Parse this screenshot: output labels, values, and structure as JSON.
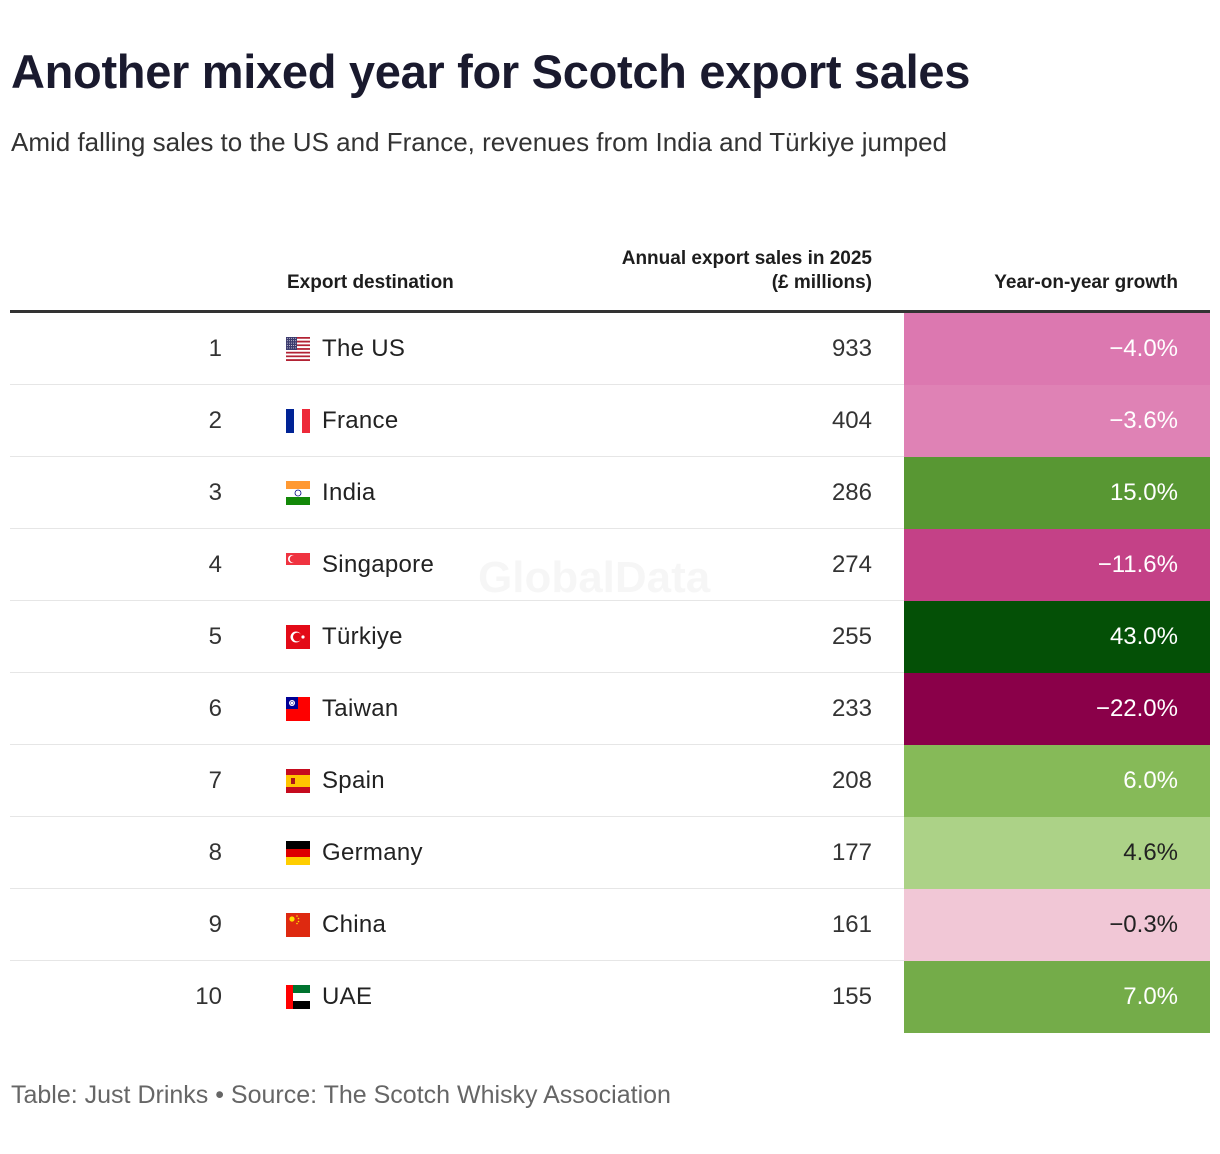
{
  "title": "Another mixed year for Scotch export sales",
  "subtitle": "Amid falling sales to the US and France, revenues from India and Türkiye jumped",
  "watermark": "GlobalData",
  "footer": "Table: Just Drinks • Source: The Scotch Whisky Association",
  "chart_data": {
    "type": "table",
    "columns": [
      "Export destination",
      "Annual export sales in 2025 (£ millions)",
      "Year-on-year growth"
    ],
    "rows": [
      {
        "rank": "1",
        "country": "The US",
        "flag": "us-flag-icon",
        "sales": "933",
        "growth": "−4.0%",
        "growth_value": -4.0,
        "color": "#dc78b0",
        "text_color": "#ffffff"
      },
      {
        "rank": "2",
        "country": "France",
        "flag": "france-flag-icon",
        "sales": "404",
        "growth": "−3.6%",
        "growth_value": -3.6,
        "color": "#df82b5",
        "text_color": "#ffffff"
      },
      {
        "rank": "3",
        "country": "India",
        "flag": "india-flag-icon",
        "sales": "286",
        "growth": "15.0%",
        "growth_value": 15.0,
        "color": "#589733",
        "text_color": "#ffffff"
      },
      {
        "rank": "4",
        "country": "Singapore",
        "flag": "singapore-flag-icon",
        "sales": "274",
        "growth": "−11.6%",
        "growth_value": -11.6,
        "color": "#c44187",
        "text_color": "#ffffff"
      },
      {
        "rank": "5",
        "country": "Türkiye",
        "flag": "turkiye-flag-icon",
        "sales": "255",
        "growth": "43.0%",
        "growth_value": 43.0,
        "color": "#045006",
        "text_color": "#ffffff"
      },
      {
        "rank": "6",
        "country": "Taiwan",
        "flag": "taiwan-flag-icon",
        "sales": "233",
        "growth": "−22.0%",
        "growth_value": -22.0,
        "color": "#8a0049",
        "text_color": "#ffffff"
      },
      {
        "rank": "7",
        "country": "Spain",
        "flag": "spain-flag-icon",
        "sales": "208",
        "growth": "6.0%",
        "growth_value": 6.0,
        "color": "#86ba58",
        "text_color": "#ffffff"
      },
      {
        "rank": "8",
        "country": "Germany",
        "flag": "germany-flag-icon",
        "sales": "177",
        "growth": "4.6%",
        "growth_value": 4.6,
        "color": "#acd287",
        "text_color": "#222222"
      },
      {
        "rank": "9",
        "country": "China",
        "flag": "china-flag-icon",
        "sales": "161",
        "growth": "−0.3%",
        "growth_value": -0.3,
        "color": "#f1c7d6",
        "text_color": "#222222"
      },
      {
        "rank": "10",
        "country": "UAE",
        "flag": "uae-flag-icon",
        "sales": "155",
        "growth": "7.0%",
        "growth_value": 7.0,
        "color": "#74ac49",
        "text_color": "#ffffff"
      }
    ]
  }
}
